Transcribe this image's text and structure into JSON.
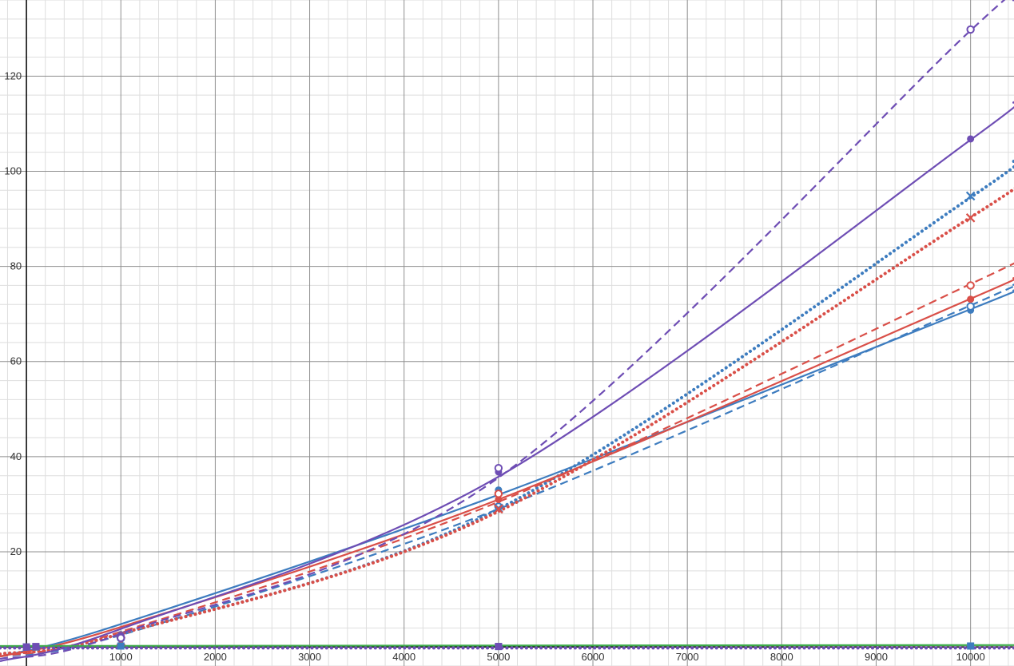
{
  "chart_data": {
    "type": "scatter",
    "title": "",
    "xlabel": "",
    "ylabel": "",
    "xlim": [
      -280,
      10460
    ],
    "ylim": [
      -4,
      136
    ],
    "grid": true,
    "legend": "none",
    "x_ticks": [
      1000,
      2000,
      3000,
      4000,
      5000,
      6000,
      7000,
      8000,
      9000,
      10000
    ],
    "y_ticks": [
      20,
      40,
      60,
      80,
      100,
      120
    ],
    "x_tick_labels": [
      "1000",
      "2000",
      "3000",
      "4000",
      "5000",
      "6000",
      "7000",
      "8000",
      "9000",
      "10000"
    ],
    "y_tick_labels": [
      "20",
      "40",
      "60",
      "80",
      "100",
      "120"
    ],
    "colors": {
      "blue": "#3d7cbf",
      "red": "#d94f48",
      "purple": "#6e4db4",
      "green": "#3cab4a",
      "axis": "#000000",
      "grid_major": "#8f8f8f",
      "grid_minor": "#dedede"
    },
    "series": [
      {
        "color": "#3d7cbf",
        "marker": "circle-filled",
        "x": [
          1000,
          5000,
          10000
        ],
        "y": [
          2.6,
          33.0,
          70.8
        ]
      },
      {
        "color": "#3d7cbf",
        "marker": "circle-open",
        "x": [
          1000,
          5000,
          10000
        ],
        "y": [
          1.8,
          29.5,
          71.6
        ]
      },
      {
        "color": "#3d7cbf",
        "marker": "cross",
        "x": [
          1000,
          5000,
          10000
        ],
        "y": [
          1.2,
          29.2,
          94.8
        ]
      },
      {
        "color": "#d94f48",
        "marker": "circle-filled",
        "x": [
          1000,
          5000,
          10000
        ],
        "y": [
          2.5,
          31.0,
          73.1
        ]
      },
      {
        "color": "#d94f48",
        "marker": "circle-open",
        "x": [
          1000,
          5000,
          10000
        ],
        "y": [
          2.0,
          32.2,
          76.0
        ]
      },
      {
        "color": "#d94f48",
        "marker": "cross",
        "x": [
          1000,
          5000,
          10000
        ],
        "y": [
          1.2,
          29.0,
          90.2
        ]
      },
      {
        "color": "#6e4db4",
        "marker": "circle-filled",
        "x": [
          1000,
          5000,
          10000
        ],
        "y": [
          2.4,
          36.8,
          106.8
        ]
      },
      {
        "color": "#6e4db4",
        "marker": "circle-open",
        "x": [
          1000,
          5000,
          10000
        ],
        "y": [
          1.9,
          37.6,
          129.8
        ]
      },
      {
        "color": "#3d7cbf",
        "marker": "square",
        "x": [
          0,
          100,
          1000,
          5000,
          10000
        ],
        "y": [
          0.0,
          0.0,
          0.2,
          0.1,
          0.2
        ]
      },
      {
        "color": "#6e4db4",
        "marker": "square",
        "x": [
          0,
          100,
          5000
        ],
        "y": [
          0.0,
          0.1,
          0.1
        ]
      }
    ],
    "fits": [
      {
        "color": "#3d7cbf",
        "style": "solid",
        "x": [
          -280,
          1000,
          5000,
          10000,
          10460
        ],
        "y": [
          -2.0,
          4.8,
          32.0,
          71.0,
          75.0
        ]
      },
      {
        "color": "#3d7cbf",
        "style": "dashed",
        "x": [
          -280,
          1000,
          5000,
          10000,
          10460
        ],
        "y": [
          -2.0,
          2.5,
          29.0,
          71.8,
          76.2
        ]
      },
      {
        "color": "#3d7cbf",
        "style": "dotted",
        "x": [
          -280,
          1000,
          5000,
          10000,
          10460
        ],
        "y": [
          -1.5,
          2.8,
          29.0,
          94.5,
          102.3
        ]
      },
      {
        "color": "#d94f48",
        "style": "solid",
        "x": [
          -280,
          1000,
          5000,
          10000,
          10460
        ],
        "y": [
          -2.0,
          4.2,
          31.0,
          73.2,
          77.6
        ]
      },
      {
        "color": "#d94f48",
        "style": "dashed",
        "x": [
          -280,
          1000,
          5000,
          10000,
          10460
        ],
        "y": [
          -2.0,
          3.2,
          30.5,
          76.3,
          81.0
        ]
      },
      {
        "color": "#d94f48",
        "style": "dotted",
        "x": [
          -280,
          1000,
          5000,
          10000,
          10460
        ],
        "y": [
          -1.5,
          2.8,
          28.5,
          90.3,
          97.2
        ]
      },
      {
        "color": "#6e4db4",
        "style": "solid",
        "x": [
          -280,
          1000,
          5000,
          10000,
          10460
        ],
        "y": [
          -3.0,
          3.8,
          35.8,
          106.6,
          114.6
        ]
      },
      {
        "color": "#6e4db4",
        "style": "dashed",
        "x": [
          -280,
          1000,
          5000,
          10000,
          10460
        ],
        "y": [
          -2.5,
          2.8,
          35.6,
          129.6,
          136.0
        ]
      },
      {
        "color": "#3cab4a",
        "style": "solid",
        "x": [
          -280,
          10460
        ],
        "y": [
          0.2,
          0.4
        ]
      },
      {
        "color": "#6e4db4",
        "style": "dotted",
        "x": [
          -280,
          10460
        ],
        "y": [
          -0.2,
          -0.2
        ]
      }
    ]
  }
}
